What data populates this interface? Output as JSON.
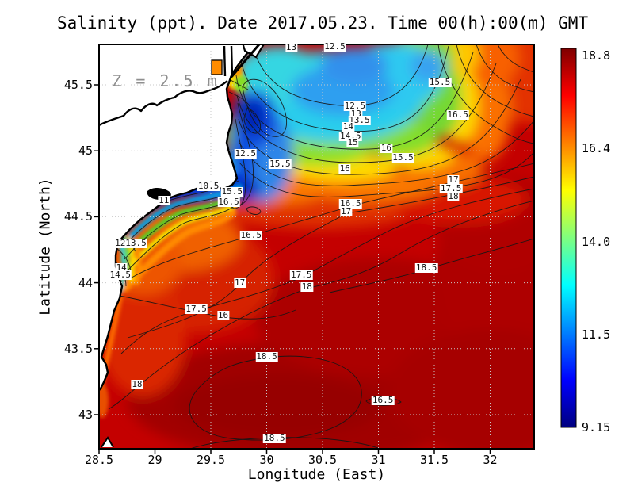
{
  "chart_data": {
    "type": "heatmap",
    "subtype": "filled-contour-map",
    "title": "Salinity (ppt). Date 2017.05.23. Time 00(h):00(m) GMT",
    "annotation": "Z = 2.5 m",
    "xlabel": "Longitude (East)",
    "ylabel": "Latitude (North)",
    "xlim": [
      28.5,
      32.39
    ],
    "ylim": [
      42.74,
      45.81
    ],
    "x_ticks": [
      28.5,
      29,
      29.5,
      30,
      30.5,
      31,
      31.5,
      32
    ],
    "x_tick_labels": [
      "28.5",
      "29",
      "29.5",
      "30",
      "30.5",
      "31",
      "31.5",
      "32"
    ],
    "y_ticks": [
      45.5,
      45,
      44.5,
      44,
      43.5,
      43
    ],
    "y_tick_labels": [
      "45.5",
      "45",
      "44.5",
      "44",
      "43.5",
      "43"
    ],
    "grid": true,
    "contour_interval_ppt": 0.5,
    "colorbar": {
      "min": 9.15,
      "max": 18.8,
      "tick_labels": [
        "18.8",
        "16.4",
        "14.0",
        "11.5",
        "9.15"
      ],
      "colormap": "jet",
      "position": "right",
      "stops_top_to_bottom": [
        "#7F0000",
        "#FF0000",
        "#FFFF00",
        "#7FFF7F",
        "#00FFFF",
        "#0000FF",
        "#00007F"
      ]
    },
    "contour_labels": [
      {
        "value": "13",
        "lon": 30.22,
        "lat": 45.78
      },
      {
        "value": "12.5",
        "lon": 30.61,
        "lat": 45.79
      },
      {
        "value": "15.5",
        "lon": 31.55,
        "lat": 45.52
      },
      {
        "value": "16.5",
        "lon": 31.71,
        "lat": 45.27
      },
      {
        "value": "12.5",
        "lon": 30.79,
        "lat": 45.34
      },
      {
        "value": "13",
        "lon": 30.8,
        "lat": 45.28
      },
      {
        "value": "13.5",
        "lon": 30.83,
        "lat": 45.23
      },
      {
        "value": "14",
        "lon": 30.73,
        "lat": 45.18
      },
      {
        "value": "14.5",
        "lon": 30.75,
        "lat": 45.11
      },
      {
        "value": "15",
        "lon": 30.77,
        "lat": 45.06
      },
      {
        "value": "16",
        "lon": 31.07,
        "lat": 45.02
      },
      {
        "value": "15.5",
        "lon": 31.22,
        "lat": 44.95
      },
      {
        "value": "15.5",
        "lon": 30.12,
        "lat": 44.9
      },
      {
        "value": "16",
        "lon": 30.7,
        "lat": 44.86
      },
      {
        "value": "12.5",
        "lon": 29.81,
        "lat": 44.98
      },
      {
        "value": "10.5",
        "lon": 29.48,
        "lat": 44.73
      },
      {
        "value": "11",
        "lon": 29.08,
        "lat": 44.62
      },
      {
        "value": "15.5",
        "lon": 29.69,
        "lat": 44.69
      },
      {
        "value": "16.5",
        "lon": 29.66,
        "lat": 44.61
      },
      {
        "value": "17",
        "lon": 31.67,
        "lat": 44.78
      },
      {
        "value": "17.5",
        "lon": 31.65,
        "lat": 44.71
      },
      {
        "value": "18",
        "lon": 31.67,
        "lat": 44.65
      },
      {
        "value": "16.5",
        "lon": 30.75,
        "lat": 44.6
      },
      {
        "value": "17",
        "lon": 30.71,
        "lat": 44.54
      },
      {
        "value": "16.5",
        "lon": 29.86,
        "lat": 44.36
      },
      {
        "value": "12",
        "lon": 28.69,
        "lat": 44.3
      },
      {
        "value": "13.5",
        "lon": 28.83,
        "lat": 44.3
      },
      {
        "value": "14",
        "lon": 28.7,
        "lat": 44.11
      },
      {
        "value": "14.5",
        "lon": 28.69,
        "lat": 44.06
      },
      {
        "value": "17",
        "lon": 29.76,
        "lat": 44.0
      },
      {
        "value": "17.5",
        "lon": 30.31,
        "lat": 44.06
      },
      {
        "value": "18",
        "lon": 30.36,
        "lat": 43.97
      },
      {
        "value": "18.5",
        "lon": 31.43,
        "lat": 44.11
      },
      {
        "value": "17.5",
        "lon": 29.37,
        "lat": 43.8
      },
      {
        "value": "16",
        "lon": 29.61,
        "lat": 43.75
      },
      {
        "value": "18.5",
        "lon": 30.0,
        "lat": 43.44
      },
      {
        "value": "18",
        "lon": 28.84,
        "lat": 43.23
      },
      {
        "value": "16.5",
        "lon": 31.04,
        "lat": 43.11
      },
      {
        "value": "18.5",
        "lon": 30.07,
        "lat": 42.82
      }
    ]
  }
}
